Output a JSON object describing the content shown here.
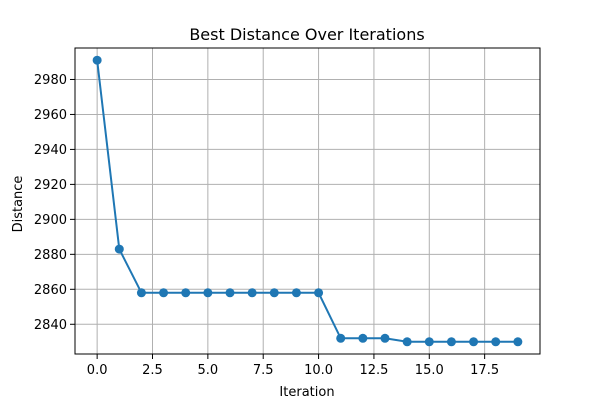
{
  "chart_data": {
    "type": "line",
    "title": "Best Distance Over Iterations",
    "xlabel": "Iteration",
    "ylabel": "Distance",
    "xlim": [
      -1,
      20
    ],
    "ylim": [
      2823,
      2998
    ],
    "xticks": [
      0.0,
      2.5,
      5.0,
      7.5,
      10.0,
      12.5,
      15.0,
      17.5
    ],
    "xtick_labels": [
      "0.0",
      "2.5",
      "5.0",
      "7.5",
      "10.0",
      "12.5",
      "15.0",
      "17.5"
    ],
    "yticks": [
      2840,
      2860,
      2880,
      2900,
      2920,
      2940,
      2960,
      2980
    ],
    "ytick_labels": [
      "2840",
      "2860",
      "2880",
      "2900",
      "2920",
      "2940",
      "2960",
      "2980"
    ],
    "grid": true,
    "x": [
      0,
      1,
      2,
      3,
      4,
      5,
      6,
      7,
      8,
      9,
      10,
      11,
      12,
      13,
      14,
      15,
      16,
      17,
      18,
      19
    ],
    "series": [
      {
        "color": "#1f77b4",
        "marker": "circle",
        "values": [
          2991,
          2883,
          2858,
          2858,
          2858,
          2858,
          2858,
          2858,
          2858,
          2858,
          2858,
          2832,
          2832,
          2832,
          2830,
          2830,
          2830,
          2830,
          2830,
          2830
        ]
      }
    ]
  }
}
